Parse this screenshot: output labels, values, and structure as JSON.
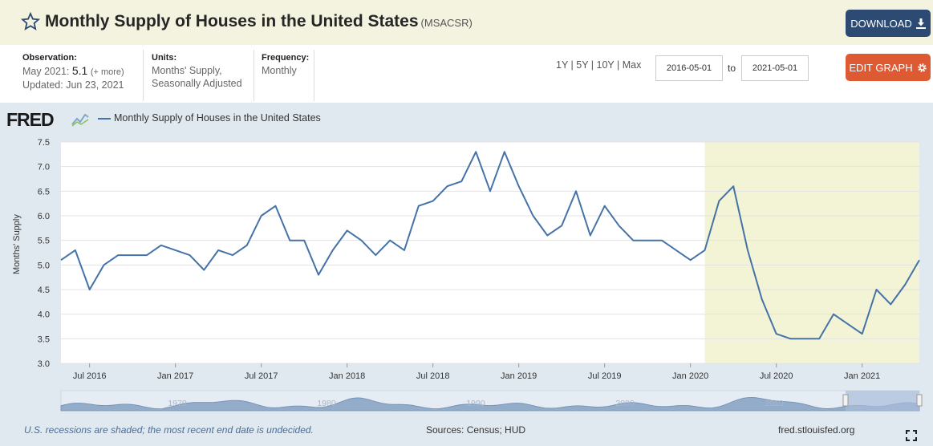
{
  "header": {
    "title": "Monthly Supply of Houses in the United States",
    "series_code": "(MSACSR)",
    "download_label": "DOWNLOAD",
    "edit_label": "EDIT GRAPH"
  },
  "meta": {
    "observation_label": "Observation:",
    "observation_date": "May 2021:",
    "observation_value": "5.1",
    "observation_more": "(+ more)",
    "updated": "Updated: Jun 23, 2021",
    "units_label": "Units:",
    "units_line1": "Months' Supply,",
    "units_line2": "Seasonally Adjusted",
    "frequency_label": "Frequency:",
    "frequency_value": "Monthly"
  },
  "controls": {
    "ranges": "1Y | 5Y | 10Y | Max",
    "start_date": "2016-05-01",
    "to_label": "to",
    "end_date": "2021-05-01"
  },
  "graph": {
    "logo": "FRED",
    "legend": "Monthly Supply of Houses in the United States",
    "ylabel": "Months' Supply",
    "recession_note": "U.S. recessions are shaded; the most recent end date is undecided.",
    "sources": "Sources: Census; HUD",
    "url": "fred.stlouisfed.org"
  },
  "colors": {
    "line": "#4572a7",
    "recession": "#f3f3d6",
    "header_bg": "#f3f3df",
    "download": "#2d4b72",
    "edit": "#dd5a33"
  },
  "navigator": {
    "labels": [
      "1970",
      "1980",
      "1990",
      "2000",
      "2010"
    ]
  },
  "chart_data": {
    "type": "line",
    "ylabel": "Months' Supply",
    "ylim": [
      3.0,
      7.5
    ],
    "yticks": [
      "3.0",
      "3.5",
      "4.0",
      "4.5",
      "5.0",
      "5.5",
      "6.0",
      "6.5",
      "7.0",
      "7.5"
    ],
    "xticks": [
      {
        "label": "Jul 2016",
        "date": "2016-07"
      },
      {
        "label": "Jan 2017",
        "date": "2017-01"
      },
      {
        "label": "Jul 2017",
        "date": "2017-07"
      },
      {
        "label": "Jan 2018",
        "date": "2018-01"
      },
      {
        "label": "Jul 2018",
        "date": "2018-07"
      },
      {
        "label": "Jan 2019",
        "date": "2019-01"
      },
      {
        "label": "Jul 2019",
        "date": "2019-07"
      },
      {
        "label": "Jan 2020",
        "date": "2020-01"
      },
      {
        "label": "Jul 2020",
        "date": "2020-07"
      },
      {
        "label": "Jan 2021",
        "date": "2021-01"
      }
    ],
    "recession": {
      "start": "2020-02",
      "end": "2021-05"
    },
    "series": [
      {
        "name": "Monthly Supply of Houses in the United States",
        "x": [
          "2016-05",
          "2016-06",
          "2016-07",
          "2016-08",
          "2016-09",
          "2016-10",
          "2016-11",
          "2016-12",
          "2017-01",
          "2017-02",
          "2017-03",
          "2017-04",
          "2017-05",
          "2017-06",
          "2017-07",
          "2017-08",
          "2017-09",
          "2017-10",
          "2017-11",
          "2017-12",
          "2018-01",
          "2018-02",
          "2018-03",
          "2018-04",
          "2018-05",
          "2018-06",
          "2018-07",
          "2018-08",
          "2018-09",
          "2018-10",
          "2018-11",
          "2018-12",
          "2019-01",
          "2019-02",
          "2019-03",
          "2019-04",
          "2019-05",
          "2019-06",
          "2019-07",
          "2019-08",
          "2019-09",
          "2019-10",
          "2019-11",
          "2019-12",
          "2020-01",
          "2020-02",
          "2020-03",
          "2020-04",
          "2020-05",
          "2020-06",
          "2020-07",
          "2020-08",
          "2020-09",
          "2020-10",
          "2020-11",
          "2020-12",
          "2021-01",
          "2021-02",
          "2021-03",
          "2021-04",
          "2021-05"
        ],
        "values": [
          5.1,
          5.3,
          4.5,
          5.0,
          5.2,
          5.2,
          5.2,
          5.4,
          5.3,
          5.2,
          4.9,
          5.3,
          5.2,
          5.4,
          6.0,
          6.2,
          5.5,
          5.5,
          4.8,
          5.3,
          5.7,
          5.5,
          5.2,
          5.5,
          5.3,
          6.2,
          6.3,
          6.6,
          6.7,
          7.3,
          6.5,
          7.3,
          6.6,
          6.0,
          5.6,
          5.8,
          6.5,
          5.6,
          6.2,
          5.8,
          5.5,
          5.5,
          5.5,
          5.3,
          5.1,
          5.3,
          6.3,
          6.6,
          5.3,
          4.3,
          3.6,
          3.5,
          3.5,
          3.5,
          4.0,
          3.8,
          3.6,
          4.5,
          4.2,
          4.6,
          5.1
        ]
      }
    ]
  }
}
